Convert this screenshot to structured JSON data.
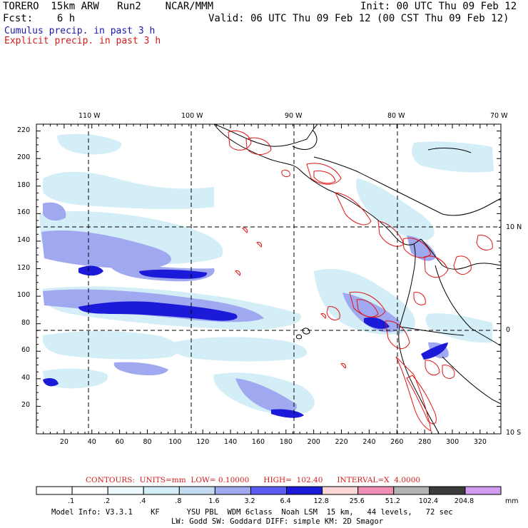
{
  "header": {
    "model": "TORERO  15km ARW   Run2    NCAR/MMM",
    "init": "Init: 00 UTC Thu 09 Feb 12",
    "fcst": "Fcst:    6 h",
    "valid": "Valid: 06 UTC Thu 09 Feb 12 (00 CST Thu 09 Feb 12)",
    "cumulus": "Cumulus precip. in past 3 h",
    "explicit": "Explicit precip. in past 3 h"
  },
  "top_lon_labels": [
    "110 W",
    "100 W",
    "90 W",
    "80 W",
    "70 W"
  ],
  "right_lat_labels": [
    "10 N",
    "0",
    "10 S"
  ],
  "y_ticks": [
    "220",
    "200",
    "180",
    "160",
    "140",
    "120",
    "100",
    "80",
    "60",
    "40",
    "20"
  ],
  "x_ticks": [
    "20",
    "40",
    "60",
    "80",
    "100",
    "120",
    "140",
    "160",
    "180",
    "200",
    "220",
    "240",
    "260",
    "280",
    "300",
    "320"
  ],
  "contours_line": {
    "label": "CONTOURS:  UNITS=mm  LOW= 0.10000      HIGH=  102.40      INTERVAL=X  4.0000"
  },
  "colorbar": {
    "labels": [
      ".1",
      ".2",
      ".4",
      ".8",
      "1.6",
      "3.2",
      "6.4",
      "12.8",
      "25.6",
      "51.2",
      "102.4",
      "204.8"
    ],
    "colors": [
      "#ffffff",
      "#ffffff",
      "#ecf8fb",
      "#d3eef6",
      "#c2dbf0",
      "#a0a9ef",
      "#5c5cf0",
      "#1a1ad8",
      "#fcd7d8",
      "#f28fb6",
      "#b3b3b3",
      "#3b3b3b",
      "#d39cf3"
    ],
    "unit": "mm"
  },
  "footer": {
    "line1": "Model Info: V3.3.1    KF      YSU PBL  WDM 6class  Noah LSM  15 km,   44 levels,   72 sec",
    "line2": "LW: Godd SW: Goddard DIFF: simple KM: 2D Smagor"
  },
  "map_extent": {
    "x_range": [
      0,
      335
    ],
    "y_range": [
      0,
      225
    ],
    "meridians_x": [
      40,
      112,
      184,
      257
    ],
    "parallels_y": [
      150,
      77
    ]
  }
}
